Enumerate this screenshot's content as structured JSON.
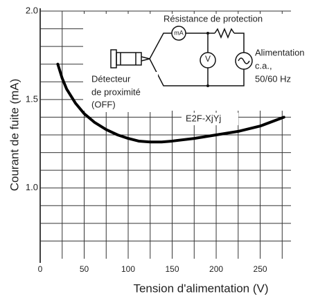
{
  "chart_data": {
    "type": "line",
    "ylabel": "Courant de fuite (mA)",
    "xlabel": "Tension d'alimentation (V)",
    "xlim": [
      0,
      285
    ],
    "ylim": [
      0.6,
      2.0
    ],
    "xticks": [
      0,
      50,
      100,
      150,
      200,
      250
    ],
    "xminor": [
      25,
      75,
      125,
      175,
      225,
      275
    ],
    "yticks": [
      {
        "value": 2.0,
        "label": "2.0"
      },
      {
        "value": 1.5,
        "label": "1.5"
      },
      {
        "value": 1.0,
        "label": "1.0"
      }
    ],
    "yminor": [
      0.7,
      0.8,
      0.9,
      1.1,
      1.2,
      1.3,
      1.4,
      1.6,
      1.7,
      1.8,
      1.9
    ],
    "grid": true,
    "series": [
      {
        "name": "E2F-XjYj",
        "color": "#000000",
        "x": [
          20,
          25,
          30,
          40,
          50,
          62,
          75,
          88,
          100,
          112,
          125,
          138,
          150,
          175,
          200,
          225,
          250,
          277
        ],
        "values": [
          1.7,
          1.62,
          1.56,
          1.48,
          1.42,
          1.37,
          1.33,
          1.3,
          1.28,
          1.265,
          1.26,
          1.26,
          1.265,
          1.28,
          1.3,
          1.32,
          1.35,
          1.4
        ]
      }
    ],
    "inset": {
      "resistor": "Résistance de protection",
      "ammeter": "mA",
      "voltmeter": "V",
      "supply": [
        "Alimentation",
        "c.a.,",
        "50/60 Hz"
      ],
      "sensor": [
        "Détecteur",
        "de proximité",
        "(OFF)"
      ]
    }
  }
}
